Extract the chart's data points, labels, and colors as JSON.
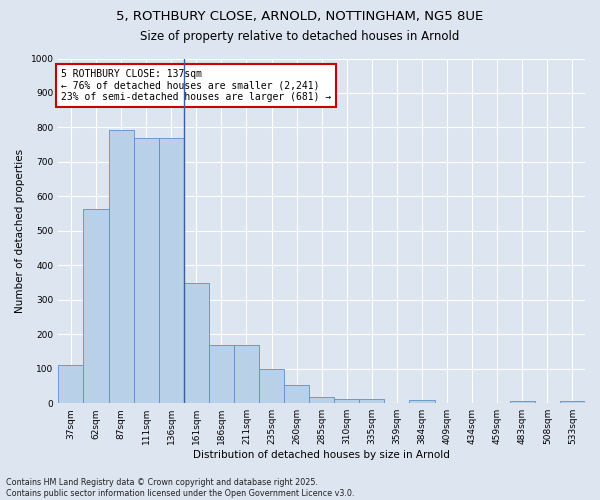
{
  "title_line1": "5, ROTHBURY CLOSE, ARNOLD, NOTTINGHAM, NG5 8UE",
  "title_line2": "Size of property relative to detached houses in Arnold",
  "xlabel": "Distribution of detached houses by size in Arnold",
  "ylabel": "Number of detached properties",
  "categories": [
    "37sqm",
    "62sqm",
    "87sqm",
    "111sqm",
    "136sqm",
    "161sqm",
    "186sqm",
    "211sqm",
    "235sqm",
    "260sqm",
    "285sqm",
    "310sqm",
    "335sqm",
    "359sqm",
    "384sqm",
    "409sqm",
    "434sqm",
    "459sqm",
    "483sqm",
    "508sqm",
    "533sqm"
  ],
  "values": [
    112,
    562,
    793,
    770,
    770,
    348,
    168,
    168,
    98,
    52,
    18,
    13,
    11,
    0,
    10,
    0,
    0,
    0,
    5,
    0,
    7
  ],
  "bar_color": "#b8d0e8",
  "bar_edge_color": "#5b8fc4",
  "vline_color": "#3a5fa0",
  "vline_index": 4,
  "annotation_text": "5 ROTHBURY CLOSE: 137sqm\n← 76% of detached houses are smaller (2,241)\n23% of semi-detached houses are larger (681) →",
  "annotation_box_facecolor": "#ffffff",
  "annotation_box_edgecolor": "#cc0000",
  "ylim": [
    0,
    1000
  ],
  "yticks": [
    0,
    100,
    200,
    300,
    400,
    500,
    600,
    700,
    800,
    900,
    1000
  ],
  "background_color": "#dde5f0",
  "plot_background_color": "#dde5f0",
  "grid_color": "#ffffff",
  "footer_text": "Contains HM Land Registry data © Crown copyright and database right 2025.\nContains public sector information licensed under the Open Government Licence v3.0.",
  "title_fontsize": 9.5,
  "subtitle_fontsize": 8.5,
  "axis_label_fontsize": 7.5,
  "tick_fontsize": 6.5,
  "annotation_fontsize": 7,
  "footer_fontsize": 5.8
}
